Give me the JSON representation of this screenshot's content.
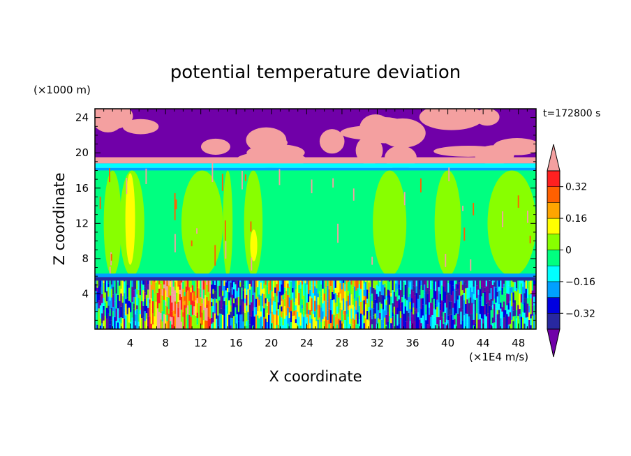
{
  "chart_data": {
    "type": "heatmap",
    "title": "potential temperature deviation",
    "xlabel": "X coordinate",
    "ylabel": "Z coordinate",
    "x_units": "(×1E4 m/s)",
    "y_units": "(×1000 m)",
    "time_label": "t=172800 s",
    "xlim": [
      0,
      50
    ],
    "ylim": [
      0,
      25
    ],
    "x_ticks": [
      4,
      8,
      12,
      16,
      20,
      24,
      28,
      32,
      36,
      40,
      44,
      48
    ],
    "y_ticks": [
      4,
      8,
      12,
      16,
      20,
      24
    ],
    "colorbar": {
      "levels": [
        -0.4,
        -0.32,
        -0.24,
        -0.16,
        -0.08,
        0,
        0.08,
        0.16,
        0.24,
        0.32,
        0.4
      ],
      "labeled_ticks": [
        "0.32",
        "0.16",
        "0",
        "−0.16",
        "−0.32"
      ],
      "labeled_values": [
        0.32,
        0.16,
        0,
        -0.16,
        -0.32
      ],
      "colors": [
        "#7000a8",
        "#2828a0",
        "#0000e0",
        "#00a0ff",
        "#00ffff",
        "#00ff80",
        "#88ff00",
        "#ffff00",
        "#ffa500",
        "#ff6000",
        "#ff2020",
        "#f4a0a0"
      ],
      "extend": "both"
    },
    "regions": [
      {
        "z": [
          18.8,
          25
        ],
        "x": [
          0,
          50
        ],
        "value": "-0.4 / 0.4 (alternating purple and pink patches)"
      },
      {
        "z": [
          18,
          18.8
        ],
        "x": [
          0,
          50
        ],
        "value": -0.2
      },
      {
        "z": [
          6,
          18
        ],
        "x": [
          0,
          50
        ],
        "value": -0.04
      },
      {
        "z": [
          6,
          18
        ],
        "x": [
          3,
          5
        ],
        "value": 0.08
      },
      {
        "z": [
          7,
          18
        ],
        "x": [
          3.5,
          4.4
        ],
        "value": 0.12
      },
      {
        "z": [
          8,
          12
        ],
        "x": [
          17.5,
          18.5
        ],
        "value": 0.12
      },
      {
        "z": [
          5.5,
          6
        ],
        "x": [
          0,
          50
        ],
        "value": -0.32
      },
      {
        "z": [
          0,
          5.5
        ],
        "x": [
          0,
          50
        ],
        "value": "mixed, -0.4 to 0.32"
      }
    ]
  }
}
